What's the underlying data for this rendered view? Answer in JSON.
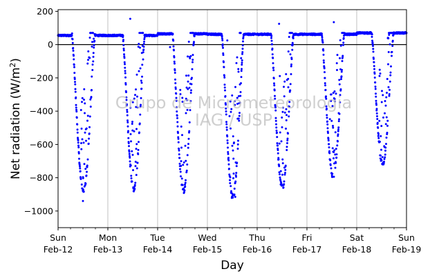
{
  "chart_data": {
    "type": "scatter",
    "xlabel": "Day",
    "ylabel": "Net radiation (W/m²)",
    "ylabel_main": "Net radiation (W/m",
    "ylabel_sup": "2",
    "ylabel_end": ")",
    "ylim": [
      -1100,
      210
    ],
    "yticks": [
      200,
      0,
      -200,
      -400,
      -600,
      -800,
      -1000
    ],
    "xlim": [
      0,
      7
    ],
    "x_ticks": [
      {
        "day": "Sun",
        "date": "Feb-12"
      },
      {
        "day": "Mon",
        "date": "Feb-13"
      },
      {
        "day": "Tue",
        "date": "Feb-14"
      },
      {
        "day": "Wed",
        "date": "Feb-15"
      },
      {
        "day": "Thu",
        "date": "Feb-16"
      },
      {
        "day": "Fri",
        "date": "Feb-17"
      },
      {
        "day": "Sat",
        "date": "Feb-18"
      },
      {
        "day": "Sun",
        "date": "Feb-19"
      }
    ],
    "grid": "vertical",
    "zero_line": true,
    "marker_color": "#0000ff",
    "watermark_line1": "Grupo de Micrometeorologia",
    "watermark_line2": "IAG / USP",
    "series": [
      {
        "days": [
          {
            "night": 55,
            "peak": -880,
            "sunrise": 0.28,
            "noon": 0.5,
            "sunset": 0.74
          },
          {
            "night": 55,
            "peak": -870,
            "sunrise": 0.3,
            "noon": 0.52,
            "sunset": 0.74
          },
          {
            "night": 65,
            "peak": -880,
            "sunrise": 0.3,
            "noon": 0.52,
            "sunset": 0.74
          },
          {
            "night": 62,
            "peak": -920,
            "sunrise": 0.29,
            "noon": 0.52,
            "sunset": 0.73
          },
          {
            "night": 62,
            "peak": -860,
            "sunrise": 0.28,
            "noon": 0.51,
            "sunset": 0.73
          },
          {
            "night": 62,
            "peak": -790,
            "sunrise": 0.3,
            "noon": 0.51,
            "sunset": 0.75
          },
          {
            "night": 70,
            "peak": -720,
            "sunrise": 0.3,
            "noon": 0.53,
            "sunset": 0.74
          }
        ],
        "outliers": [
          {
            "x": 0.5,
            "y": -940
          },
          {
            "x": 1.45,
            "y": 155
          },
          {
            "x": 3.56,
            "y": -915
          },
          {
            "x": 4.44,
            "y": 125
          },
          {
            "x": 5.54,
            "y": 135
          },
          {
            "x": 2.25,
            "y": -15
          },
          {
            "x": 3.4,
            "y": 25
          }
        ]
      }
    ]
  }
}
